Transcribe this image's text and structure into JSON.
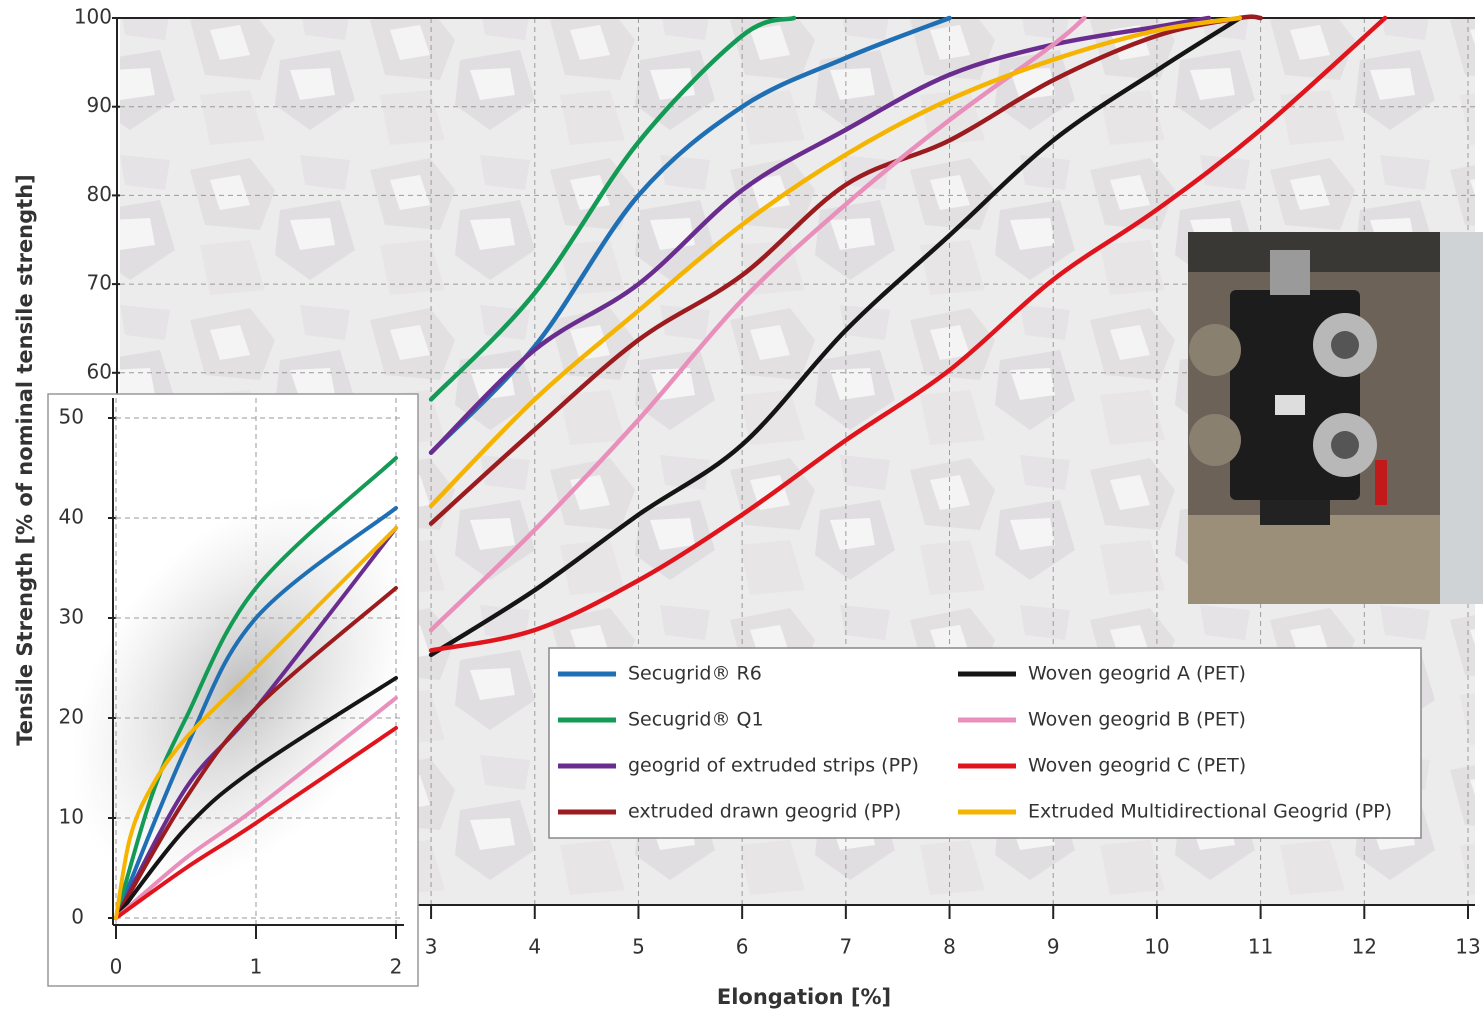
{
  "chart_data": [
    {
      "type": "line",
      "x_label": "Elongation [%]",
      "y_label": "Tensile Strength [% of nominal tensile strength]",
      "xlim": [
        0,
        13
      ],
      "ylim": [
        0,
        100
      ],
      "xticks": [
        3,
        4,
        5,
        6,
        7,
        8,
        9,
        10,
        11,
        12,
        13
      ],
      "yticks": [
        60,
        70,
        80,
        90,
        100
      ],
      "grid": true,
      "legend": "lower right",
      "series": [
        {
          "name": "Secugrid® R6",
          "color": "#1f6fb4",
          "x": [
            3,
            4,
            5,
            6,
            7,
            8
          ],
          "values": [
            51,
            63,
            80,
            90,
            95.5,
            100
          ]
        },
        {
          "name": "Secugrid® Q1",
          "color": "#139a55",
          "x": [
            3,
            4,
            5,
            6,
            6.5
          ],
          "values": [
            57,
            69,
            86,
            98,
            100
          ]
        },
        {
          "name": "geogrid of extruded strips (PP)",
          "color": "#6a2d8f",
          "x": [
            3,
            4,
            5,
            6,
            7,
            8,
            9,
            10,
            10.5
          ],
          "values": [
            51,
            62.6,
            70,
            80.6,
            87.4,
            93.6,
            97,
            99,
            100
          ]
        },
        {
          "name": "extruded drawn geogrid (PP)",
          "color": "#9b1b1f",
          "x": [
            3,
            4,
            5,
            6,
            7,
            8,
            9,
            10,
            10.8,
            11
          ],
          "values": [
            43,
            53.6,
            63.7,
            71,
            81.2,
            86.2,
            93,
            98,
            100,
            100
          ]
        },
        {
          "name": "Woven geogrid A (PET)",
          "color": "#151515",
          "x": [
            3,
            4,
            5,
            6,
            7,
            8,
            9,
            10,
            10.8
          ],
          "values": [
            28.2,
            35.5,
            44,
            51.9,
            64.8,
            75.5,
            86.2,
            94.1,
            100
          ]
        },
        {
          "name": "Woven geogrid B (PET)",
          "color": "#e98fbc",
          "x": [
            3,
            4,
            5,
            6,
            7,
            8,
            9,
            9.3
          ],
          "values": [
            31,
            42.3,
            54.7,
            68.2,
            79,
            88.5,
            97,
            100
          ]
        },
        {
          "name": "Woven geogrid C (PET)",
          "color": "#e0141c",
          "x": [
            3,
            4,
            5,
            6,
            7,
            8,
            9,
            10,
            11,
            12.2
          ],
          "values": [
            28.7,
            31,
            36.6,
            44,
            52.4,
            60.3,
            70.5,
            78.4,
            87.4,
            100
          ]
        },
        {
          "name": "Extruded Multidirectional Geogrid (PP)",
          "color": "#f5b400",
          "x": [
            3,
            4,
            5,
            6,
            7,
            8,
            9,
            10,
            10.8
          ],
          "values": [
            45,
            57,
            67,
            76.7,
            84.6,
            90.8,
            95.3,
            98.6,
            100
          ]
        }
      ]
    },
    {
      "type": "line",
      "xlim": [
        0,
        2
      ],
      "ylim": [
        0,
        50
      ],
      "xticks": [
        0,
        1,
        2
      ],
      "yticks": [
        0,
        10,
        20,
        30,
        40,
        50
      ],
      "grid": true,
      "series": [
        {
          "color": "#1f6fb4",
          "x": [
            0,
            0.5,
            1,
            2
          ],
          "values": [
            0,
            17,
            30,
            41
          ]
        },
        {
          "color": "#139a55",
          "x": [
            0,
            0.25,
            0.5,
            1,
            2
          ],
          "values": [
            0,
            12,
            20,
            33,
            46
          ]
        },
        {
          "color": "#6a2d8f",
          "x": [
            0,
            0.5,
            1,
            2
          ],
          "values": [
            0,
            13,
            21,
            39
          ]
        },
        {
          "color": "#9b1b1f",
          "x": [
            0,
            0.5,
            1,
            2
          ],
          "values": [
            0,
            12,
            21,
            33
          ]
        },
        {
          "color": "#151515",
          "x": [
            0,
            0.5,
            1,
            2
          ],
          "values": [
            0,
            9,
            15,
            24
          ]
        },
        {
          "color": "#e98fbc",
          "x": [
            0,
            0.5,
            1,
            2
          ],
          "values": [
            0,
            6,
            11,
            22
          ]
        },
        {
          "color": "#e0141c",
          "x": [
            0,
            0.5,
            1,
            2
          ],
          "values": [
            0,
            5,
            9.5,
            19
          ]
        },
        {
          "color": "#f5b400",
          "x": [
            0,
            0.1,
            0.25,
            0.5,
            1,
            2
          ],
          "values": [
            0,
            8,
            13,
            18,
            25,
            39
          ]
        }
      ]
    }
  ]
}
